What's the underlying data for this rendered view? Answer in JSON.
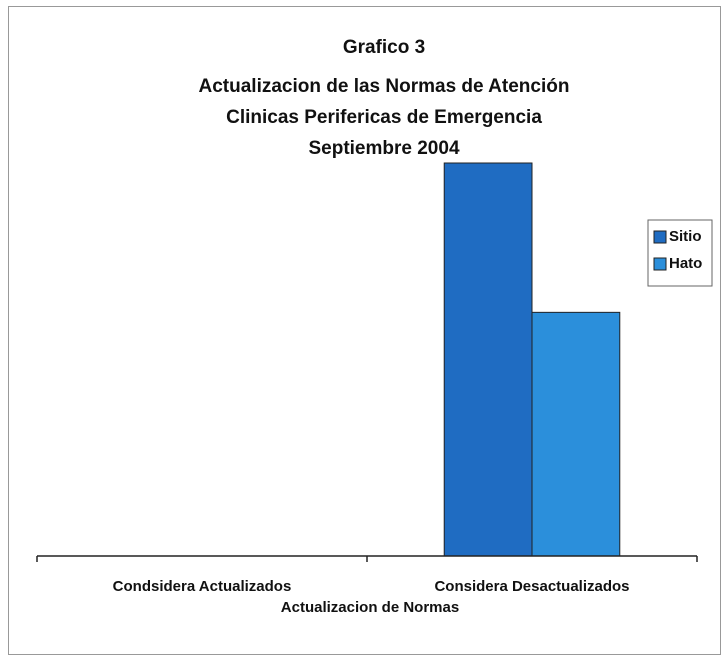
{
  "chart_data": {
    "type": "bar",
    "title": [
      "Grafico 3",
      "Actualizacion de las Normas de Atención",
      "Clinicas Perifericas de Emergencia",
      "Septiembre 2004"
    ],
    "x_label": "Actualizacion de Normas",
    "categories": [
      "Condsidera Actualizados",
      "Considera Desactualizados"
    ],
    "series": [
      {
        "name": "Sitio",
        "color": "#1f6cc2",
        "values": [
          0,
          100
        ]
      },
      {
        "name": "Hato",
        "color": "#2b8fdb",
        "values": [
          0,
          62
        ]
      }
    ],
    "legend": "right"
  }
}
